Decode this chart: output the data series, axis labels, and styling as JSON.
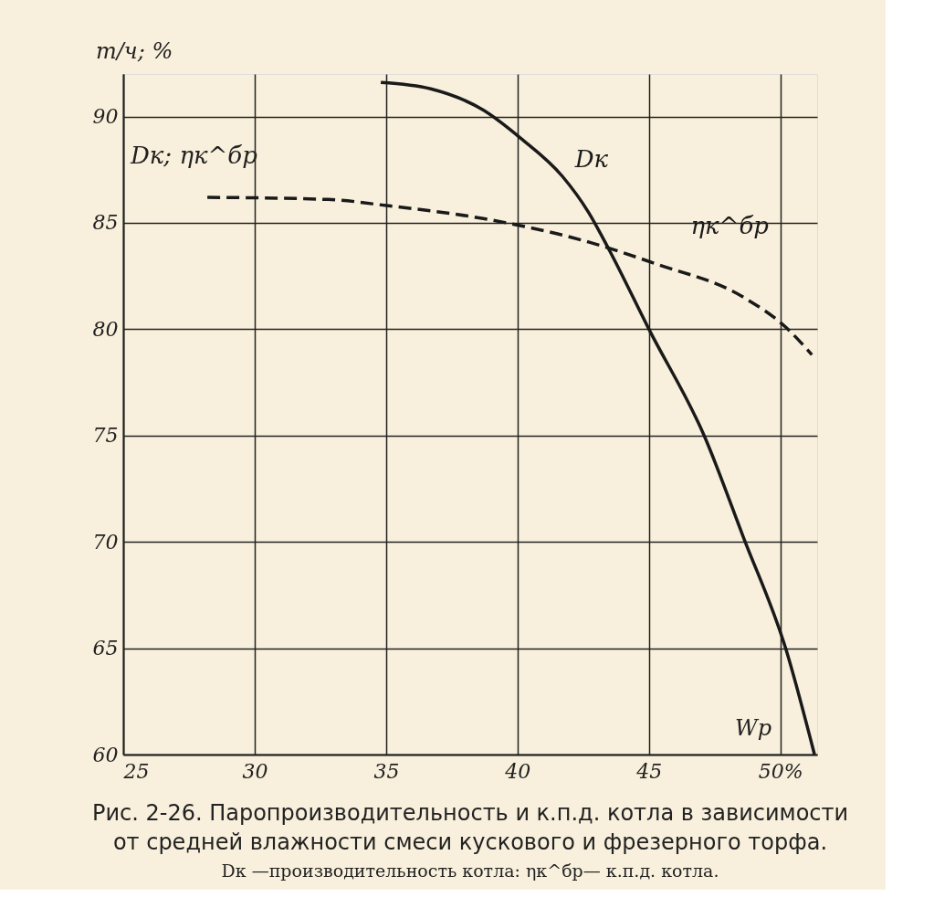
{
  "chart_data": {
    "type": "line",
    "title": "Рис. 2-26. Паропроизводительность и к.п.д. котла в зависимости от средней влажности смеси кускового и фрезерного торфа.",
    "subtitle": "Dк —производительность котла: ηк^бр— к.п.д. котла.",
    "ylabel": "т/ч; %",
    "xlabel": "Wр",
    "annotations": [
      "Dк; ηк^бр"
    ],
    "xlim": [
      25,
      51.4
    ],
    "ylim": [
      60,
      92
    ],
    "xticks": [
      25,
      30,
      35,
      40,
      45,
      {
        "value": 50,
        "label": "50%"
      }
    ],
    "yticks": [
      60,
      65,
      70,
      75,
      80,
      85,
      90
    ],
    "grid": true,
    "series": [
      {
        "name": "Dк",
        "color": "#1a1a1a",
        "line_style": "solid",
        "x": [
          34.8,
          36.7,
          38.7,
          40.1,
          41.7,
          42.7,
          43.5,
          45.0,
          47.1,
          48.6,
          50.2,
          51.3
        ],
        "values": [
          91.6,
          91.3,
          90.3,
          89.0,
          87.2,
          85.5,
          83.7,
          80.0,
          75.0,
          70.2,
          65.0,
          60.0
        ]
      },
      {
        "name": "ηк^бр",
        "color": "#1a1a1a",
        "line_style": "dashed",
        "x": [
          28.2,
          32.8,
          35.1,
          38.7,
          42.7,
          45.2,
          48.6,
          50.2,
          51.2
        ],
        "values": [
          86.2,
          86.1,
          85.8,
          85.2,
          84.1,
          83.1,
          81.5,
          80.1,
          78.8
        ]
      }
    ]
  }
}
